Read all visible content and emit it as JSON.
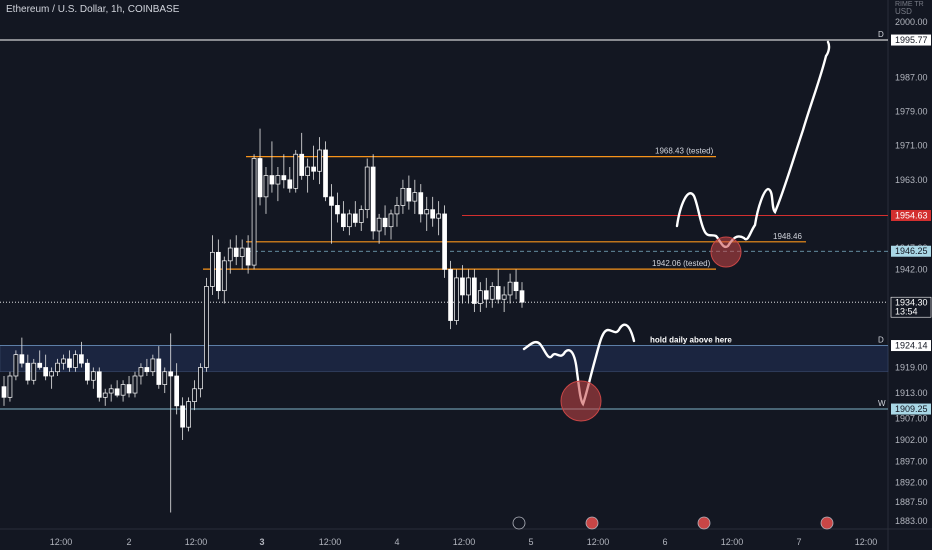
{
  "header": {
    "title": "Ethereum / U.S. Dollar, 1h, COINBASE"
  },
  "axis": {
    "currency_top": "USD",
    "currency_sub": "RIME TR"
  },
  "chart_data": {
    "type": "candlestick",
    "title": "Ethereum / U.S. Dollar, 1h, COINBASE",
    "ylim": [
      1880,
      2002
    ],
    "y_ticks": [
      2000.0,
      1987.0,
      1979.0,
      1971.0,
      1963.0,
      1955.0,
      1947.0,
      1942.0,
      1937.0,
      1931.0,
      1919.0,
      1913.0,
      1907.0,
      1902.0,
      1897.0,
      1892.0,
      1887.5,
      1883.0
    ],
    "y_tick_labels": [
      "2000.00",
      "1987.00",
      "1979.00",
      "1971.00",
      "1963.00",
      "",
      "1947.00",
      "1942.00",
      "",
      "",
      "1919.00",
      "1913.00",
      "1907.00",
      "1902.00",
      "1897.00",
      "1892.00",
      "1887.50",
      "1883.00"
    ],
    "x_ticks": [
      "12:00",
      "2",
      "12:00",
      "3",
      "12:00",
      "4",
      "12:00",
      "5",
      "12:00",
      "6",
      "12:00",
      "7",
      "12:00"
    ],
    "levels": [
      {
        "name": "D",
        "value": 1995.77,
        "label": "1995.77",
        "color": "#ffffff",
        "style": "solid",
        "side_tag": "D"
      },
      {
        "name": "tested-1968",
        "value": 1968.43,
        "label": "1968.43 (tested)",
        "color": "#f7931a",
        "style": "segment"
      },
      {
        "name": "red-level",
        "value": 1954.63,
        "label": "1954.63",
        "color": "#d32f2f",
        "style": "solid"
      },
      {
        "name": "1948",
        "value": 1948.46,
        "label": "1948.46",
        "color": "#f7931a",
        "style": "segment"
      },
      {
        "name": "current-dashed",
        "value": 1946.25,
        "label": "1946.25",
        "color": "#7fb3c8",
        "style": "dashed"
      },
      {
        "name": "tested-1942",
        "value": 1942.06,
        "label": "1942.06 (tested)",
        "color": "#f7931a",
        "style": "segment"
      },
      {
        "name": "last-price",
        "value": 1934.3,
        "label": "1934.30",
        "sub_label": "13:54",
        "color": "#ffffff",
        "style": "dotted"
      },
      {
        "name": "daily-top",
        "value": 1924.14,
        "label": "1924.14",
        "color": "#5d7fa8",
        "style": "solid",
        "side_tag": "D"
      },
      {
        "name": "weekly",
        "value": 1909.25,
        "label": "1909.25",
        "color": "#7fb3c8",
        "style": "solid",
        "side_tag": "W"
      }
    ],
    "zone": {
      "from": 1918.0,
      "to": 1924.14,
      "label": "hold daily above here"
    },
    "candles": [
      [
        1914.5,
        1917.0,
        1910.0,
        1912.0
      ],
      [
        1912.0,
        1918.0,
        1911.0,
        1917.0
      ],
      [
        1917.0,
        1923.0,
        1916.0,
        1922.0
      ],
      [
        1922.0,
        1926.0,
        1919.0,
        1920.0
      ],
      [
        1920.0,
        1922.0,
        1915.0,
        1916.0
      ],
      [
        1916.0,
        1921.0,
        1915.0,
        1920.0
      ],
      [
        1920.0,
        1923.0,
        1918.5,
        1919.0
      ],
      [
        1919.0,
        1922.0,
        1916.0,
        1917.0
      ],
      [
        1917.0,
        1919.0,
        1914.0,
        1918.0
      ],
      [
        1918.0,
        1921.0,
        1917.0,
        1920.0
      ],
      [
        1920.0,
        1922.0,
        1918.5,
        1921.0
      ],
      [
        1921.0,
        1923.0,
        1918.0,
        1919.0
      ],
      [
        1919.0,
        1923.0,
        1918.0,
        1922.0
      ],
      [
        1922.0,
        1925.0,
        1919.0,
        1920.0
      ],
      [
        1920.0,
        1921.0,
        1915.0,
        1916.0
      ],
      [
        1916.0,
        1919.0,
        1914.0,
        1918.0
      ],
      [
        1918.0,
        1919.0,
        1911.0,
        1912.0
      ],
      [
        1912.0,
        1914.0,
        1910.0,
        1913.0
      ],
      [
        1913.0,
        1915.0,
        1911.0,
        1914.0
      ],
      [
        1914.0,
        1916.0,
        1912.0,
        1912.5
      ],
      [
        1912.5,
        1916.0,
        1911.0,
        1915.0
      ],
      [
        1915.0,
        1917.0,
        1912.0,
        1913.0
      ],
      [
        1913.0,
        1918.0,
        1912.0,
        1917.0
      ],
      [
        1917.0,
        1920.0,
        1915.0,
        1919.0
      ],
      [
        1919.0,
        1921.0,
        1917.0,
        1918.0
      ],
      [
        1918.0,
        1922.0,
        1917.0,
        1921.0
      ],
      [
        1921.0,
        1924.0,
        1914.0,
        1915.0
      ],
      [
        1915.0,
        1919.0,
        1913.0,
        1918.0
      ],
      [
        1918.0,
        1927.0,
        1885.0,
        1917.0
      ],
      [
        1917.0,
        1920.0,
        1908.0,
        1910.0
      ],
      [
        1910.0,
        1912.0,
        1902.0,
        1905.0
      ],
      [
        1905.0,
        1912.0,
        1904.0,
        1911.0
      ],
      [
        1911.0,
        1916.0,
        1909.0,
        1914.0
      ],
      [
        1914.0,
        1920.0,
        1912.0,
        1919.0
      ],
      [
        1919.0,
        1940.0,
        1918.0,
        1938.0
      ],
      [
        1938.0,
        1950.0,
        1936.0,
        1946.0
      ],
      [
        1946.0,
        1949.0,
        1935.0,
        1937.0
      ],
      [
        1937.0,
        1945.0,
        1934.0,
        1944.0
      ],
      [
        1944.0,
        1949.0,
        1941.0,
        1947.0
      ],
      [
        1947.0,
        1950.0,
        1943.0,
        1945.0
      ],
      [
        1945.0,
        1949.0,
        1942.0,
        1947.0
      ],
      [
        1947.0,
        1950.0,
        1941.0,
        1943.0
      ],
      [
        1943.0,
        1969.0,
        1942.0,
        1968.0
      ],
      [
        1968.0,
        1975.0,
        1957.0,
        1959.0
      ],
      [
        1959.0,
        1966.0,
        1955.0,
        1964.0
      ],
      [
        1964.0,
        1972.0,
        1960.0,
        1962.0
      ],
      [
        1962.0,
        1966.0,
        1958.0,
        1964.0
      ],
      [
        1964.0,
        1969.0,
        1961.0,
        1963.0
      ],
      [
        1963.0,
        1966.0,
        1960.0,
        1961.0
      ],
      [
        1961.0,
        1970.0,
        1960.0,
        1969.0
      ],
      [
        1969.0,
        1974.0,
        1963.0,
        1964.0
      ],
      [
        1964.0,
        1968.0,
        1960.0,
        1966.0
      ],
      [
        1966.0,
        1971.0,
        1963.0,
        1965.0
      ],
      [
        1965.0,
        1973.0,
        1962.0,
        1970.0
      ],
      [
        1970.0,
        1972.0,
        1958.0,
        1959.0
      ],
      [
        1959.0,
        1962.0,
        1948.0,
        1957.0
      ],
      [
        1957.0,
        1960.0,
        1953.0,
        1955.0
      ],
      [
        1955.0,
        1958.0,
        1951.0,
        1952.0
      ],
      [
        1952.0,
        1956.0,
        1950.0,
        1955.0
      ],
      [
        1955.0,
        1958.0,
        1952.0,
        1953.0
      ],
      [
        1953.0,
        1957.0,
        1951.0,
        1956.0
      ],
      [
        1956.0,
        1968.0,
        1954.0,
        1966.0
      ],
      [
        1966.0,
        1969.0,
        1949.0,
        1951.0
      ],
      [
        1951.0,
        1955.0,
        1948.0,
        1954.0
      ],
      [
        1954.0,
        1957.0,
        1950.0,
        1952.0
      ],
      [
        1952.0,
        1956.0,
        1949.0,
        1955.0
      ],
      [
        1955.0,
        1959.0,
        1952.0,
        1957.0
      ],
      [
        1957.0,
        1963.0,
        1955.0,
        1961.0
      ],
      [
        1961.0,
        1964.0,
        1956.0,
        1958.0
      ],
      [
        1958.0,
        1963.0,
        1955.0,
        1960.0
      ],
      [
        1960.0,
        1962.0,
        1953.0,
        1955.0
      ],
      [
        1955.0,
        1959.0,
        1951.0,
        1956.0
      ],
      [
        1956.0,
        1959.0,
        1952.0,
        1954.0
      ],
      [
        1954.0,
        1958.0,
        1950.0,
        1955.0
      ],
      [
        1955.0,
        1957.0,
        1940.0,
        1942.0
      ],
      [
        1942.0,
        1944.0,
        1928.0,
        1930.0
      ],
      [
        1930.0,
        1942.0,
        1929.0,
        1940.0
      ],
      [
        1940.0,
        1943.0,
        1934.0,
        1936.0
      ],
      [
        1936.0,
        1942.0,
        1934.0,
        1940.0
      ],
      [
        1940.0,
        1942.0,
        1932.0,
        1934.0
      ],
      [
        1934.0,
        1939.0,
        1932.0,
        1937.0
      ],
      [
        1937.0,
        1940.0,
        1933.0,
        1935.0
      ],
      [
        1935.0,
        1939.0,
        1933.0,
        1938.0
      ],
      [
        1938.0,
        1942.0,
        1934.0,
        1935.0
      ],
      [
        1935.0,
        1938.0,
        1932.0,
        1936.0
      ],
      [
        1936.0,
        1941.0,
        1934.0,
        1939.0
      ],
      [
        1939.0,
        1942.0,
        1935.0,
        1937.0
      ],
      [
        1937.0,
        1939.0,
        1933.0,
        1934.3
      ]
    ]
  }
}
